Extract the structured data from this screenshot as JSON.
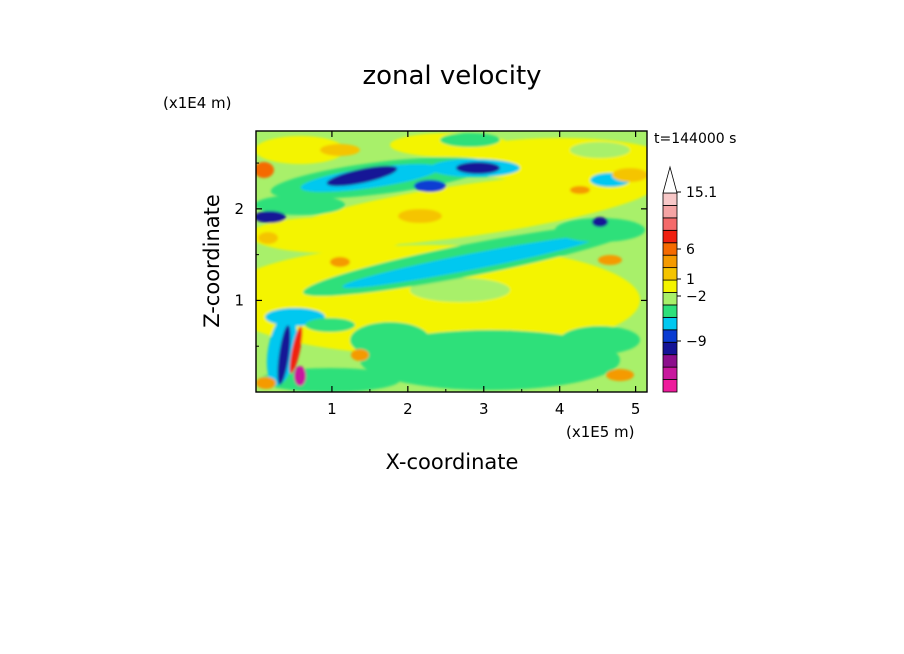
{
  "chart_data": {
    "type": "heatmap",
    "title": "zonal velocity",
    "xlabel": "X-coordinate",
    "ylabel": "Z-coordinate",
    "x_unit": "(x1E5 m)",
    "y_unit": "(x1E4 m)",
    "time_label": "t=144000 s",
    "xlim": [
      0,
      5.15
    ],
    "ylim": [
      0,
      2.85
    ],
    "xticks": [
      "1",
      "2",
      "3",
      "4",
      "5"
    ],
    "yticks": [
      "1",
      "2"
    ],
    "colorbar": {
      "labels": [
        "15.1",
        "6",
        "1",
        "-2",
        "-9"
      ],
      "colors": [
        "#ee1c9c",
        "#c8189e",
        "#8c0f8c",
        "#141496",
        "#0a3cd2",
        "#00c8f0",
        "#2de07a",
        "#a8f06a",
        "#f4f400",
        "#f5c400",
        "#f59a00",
        "#f56a00",
        "#f02010",
        "#f46a6a",
        "#f5a4a4",
        "#f8c8c8"
      ],
      "extend": "max"
    }
  }
}
